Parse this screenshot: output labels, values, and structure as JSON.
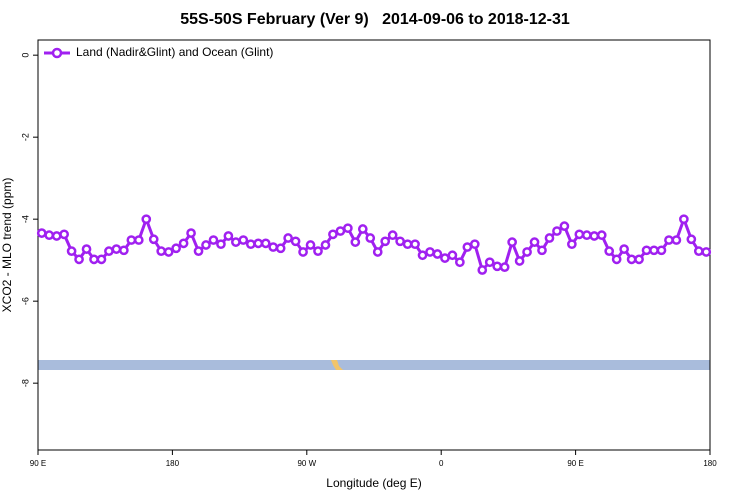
{
  "chart_data": {
    "type": "line",
    "title": "55S-50S February (Ver 9)   2014-09-06 to 2018-12-31",
    "x_label": "Longitude (deg E)",
    "y_label": "XCO2 - MLO trend (ppm)",
    "xlim": [
      90,
      540
    ],
    "xticks": [
      {
        "value": 90,
        "label": "90 E"
      },
      180,
      {
        "value": 270,
        "label": "90 W"
      },
      {
        "value": 360,
        "label": "0"
      },
      {
        "value": 450,
        "label": "90 E"
      },
      {
        "value": 540,
        "label": "180"
      }
    ],
    "ylim": [
      -9.63,
      0.37
    ],
    "yticks": [
      0,
      -2,
      -4,
      -6,
      -8
    ],
    "legend": "top-left",
    "x": [
      92.5,
      97.5,
      102.5,
      107.5,
      112.5,
      117.5,
      122.5,
      127.5,
      132.5,
      137.5,
      142.5,
      147.5,
      152.5,
      157.5,
      162.5,
      167.5,
      172.5,
      177.5,
      182.5,
      187.5,
      192.5,
      197.5,
      202.5,
      207.5,
      212.5,
      217.5,
      222.5,
      227.5,
      232.5,
      237.5,
      242.5,
      247.5,
      252.5,
      257.5,
      262.5,
      267.5,
      272.5,
      277.5,
      282.5,
      287.5,
      292.5,
      297.5,
      302.5,
      307.5,
      312.5,
      317.5,
      322.5,
      327.5,
      332.5,
      337.5,
      342.5,
      347.5,
      352.5,
      357.5,
      362.5,
      367.5,
      372.5,
      377.5,
      382.5,
      387.5,
      392.5,
      397.5,
      402.5,
      407.5,
      412.5,
      417.5,
      422.5,
      427.5,
      432.5,
      437.5,
      442.5,
      447.5,
      452.5,
      457.5,
      462.5,
      467.5,
      472.5,
      477.5,
      482.5,
      487.5,
      492.5,
      497.5,
      502.5,
      507.5,
      512.5,
      517.5,
      522.5,
      527.5,
      532.5,
      537.5
    ],
    "series": [
      {
        "name": "Land (Nadir&Glint) and Ocean (Glint)",
        "color": "#a020f0",
        "values": [
          -4.34,
          -4.39,
          -4.41,
          -4.37,
          -4.78,
          -4.98,
          -4.73,
          -4.98,
          -4.98,
          -4.78,
          -4.73,
          -4.76,
          -4.51,
          -4.51,
          -4.0,
          -4.49,
          -4.78,
          -4.8,
          -4.71,
          -4.59,
          -4.34,
          -4.78,
          -4.63,
          -4.51,
          -4.61,
          -4.41,
          -4.56,
          -4.51,
          -4.61,
          -4.59,
          -4.59,
          -4.68,
          -4.71,
          -4.46,
          -4.54,
          -4.8,
          -4.63,
          -4.78,
          -4.63,
          -4.37,
          -4.29,
          -4.22,
          -4.56,
          -4.24,
          -4.46,
          -4.8,
          -4.54,
          -4.39,
          -4.54,
          -4.61,
          -4.61,
          -4.88,
          -4.8,
          -4.85,
          -4.95,
          -4.88,
          -5.05,
          -4.68,
          -4.61,
          -5.24,
          -5.05,
          -5.15,
          -5.17,
          -4.56,
          -5.02,
          -4.8,
          -4.56,
          -4.76,
          -4.46,
          -4.29,
          -4.17,
          -4.61,
          -4.37,
          -4.39,
          -4.41,
          -4.39,
          -4.78,
          -4.98,
          -4.73,
          -4.98,
          -4.98,
          -4.76,
          -4.76,
          -4.76,
          -4.51,
          -4.51,
          -4.0,
          -4.49,
          -4.78,
          -4.8
        ]
      }
    ]
  }
}
